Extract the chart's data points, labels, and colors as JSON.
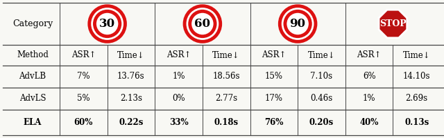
{
  "categories": [
    "30",
    "60",
    "90",
    "STOP"
  ],
  "col_headers": [
    "Method",
    "ASR↑",
    "Time↓",
    "ASR↑",
    "Time↓",
    "ASR↑",
    "Time↓",
    "ASR↑",
    "Time↓"
  ],
  "rows": [
    [
      "AdvLB",
      "7%",
      "13.76s",
      "1%",
      "18.56s",
      "15%",
      "7.10s",
      "6%",
      "14.10s"
    ],
    [
      "AdvLS",
      "5%",
      "2.13s",
      "0%",
      "2.77s",
      "17%",
      "0.46s",
      "1%",
      "2.69s"
    ],
    [
      "ELA",
      "60%",
      "0.22s",
      "33%",
      "0.18s",
      "76%",
      "0.20s",
      "40%",
      "0.13s"
    ]
  ],
  "bold_row": 2,
  "background_color": "#f8f8f4",
  "circle_border_color": "#dd1111",
  "stop_fill_color": "#bb1111",
  "stop_text_color": "#ffffff",
  "line_color": "#444444",
  "figsize": [
    6.4,
    2.0
  ],
  "dpi": 100,
  "font_size": 8.5
}
